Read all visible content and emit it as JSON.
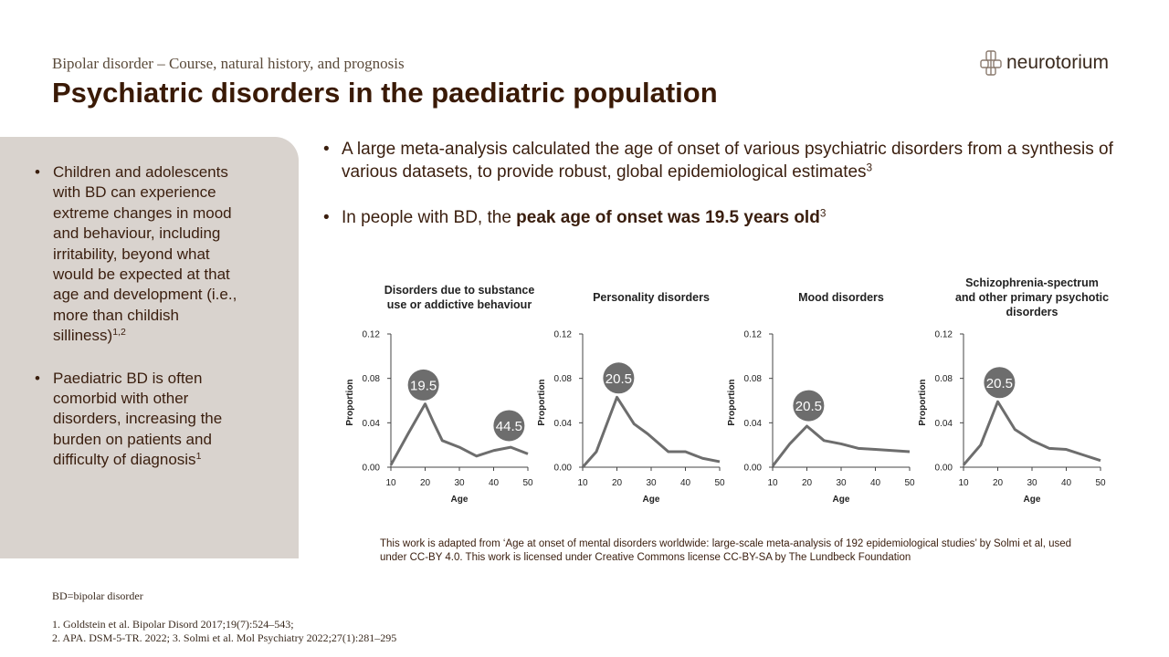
{
  "header": {
    "subtitle": "Bipolar disorder – Course, natural history, and prognosis",
    "title": "Psychiatric disorders in the paediatric population",
    "logo": "neurotorium"
  },
  "sidebar": {
    "bullets": [
      {
        "text": "Children and adolescents with BD can experience extreme changes in mood and behaviour, including irritability, beyond what would be expected at that age and development (i.e., more than childish silliness)",
        "sup": "1,2"
      },
      {
        "text": "Paediatric BD is often comorbid with other disorders, increasing the burden on patients and difficulty of diagnosis",
        "sup": "1"
      }
    ]
  },
  "main": {
    "bullets": [
      {
        "text": "A large meta-analysis calculated the age of onset of various psychiatric disorders from a synthesis of various datasets, to provide robust, global epidemiological estimates",
        "sup": "3"
      },
      {
        "text": "In people with BD, the ",
        "bold": "peak age of onset was 19.5 years old",
        "sup": "3"
      }
    ]
  },
  "chart_data": [
    {
      "type": "line",
      "title": "Disorders due to substance use or addictive behaviour",
      "x_label": "Age",
      "y_label": "Proportion",
      "x": [
        10,
        15,
        20,
        22.5,
        25,
        30,
        35,
        40,
        45,
        50
      ],
      "values": [
        0.002,
        0.03,
        0.057,
        0.04,
        0.024,
        0.018,
        0.01,
        0.015,
        0.018,
        0.012
      ],
      "color": "#6d6d6d",
      "xlim": [
        10,
        50
      ],
      "ylim": [
        0,
        0.12
      ],
      "xticks": [
        10,
        20,
        30,
        40,
        50
      ],
      "yticks": [
        {
          "value": 0,
          "label": "0.00"
        },
        0.04,
        0.08,
        0.12
      ],
      "peaks": [
        19.5,
        44.5
      ]
    },
    {
      "type": "line",
      "title": "Personality disorders",
      "x_label": "Age",
      "y_label": "Proportion",
      "x": [
        10,
        14,
        20,
        25,
        29,
        35,
        40,
        45,
        50
      ],
      "values": [
        0.0,
        0.014,
        0.063,
        0.039,
        0.03,
        0.014,
        0.014,
        0.008,
        0.005
      ],
      "color": "#6d6d6d",
      "xlim": [
        10,
        50
      ],
      "ylim": [
        0,
        0.12
      ],
      "xticks": [
        10,
        20,
        30,
        40,
        50
      ],
      "yticks": [
        {
          "value": 0,
          "label": "0.00"
        },
        0.04,
        0.08,
        0.12
      ],
      "peaks": [
        20.5
      ]
    },
    {
      "type": "line",
      "title": "Mood disorders",
      "x_label": "Age",
      "y_label": "Proportion",
      "x": [
        10,
        15,
        20,
        25,
        30,
        35,
        40,
        45,
        50
      ],
      "values": [
        0.001,
        0.021,
        0.037,
        0.024,
        0.021,
        0.017,
        0.016,
        0.015,
        0.014
      ],
      "color": "#6d6d6d",
      "xlim": [
        10,
        50
      ],
      "ylim": [
        0,
        0.12
      ],
      "xticks": [
        10,
        20,
        30,
        40,
        50
      ],
      "yticks": [
        {
          "value": 0,
          "label": "0.00"
        },
        0.04,
        0.08,
        0.12
      ],
      "peaks": [
        20.5
      ]
    },
    {
      "type": "line",
      "title": "Schizophrenia-spectrum and other primary psychotic disorders",
      "x_label": "Age",
      "y_label": "Proportion",
      "x": [
        10,
        15,
        20,
        25,
        30,
        35,
        40,
        45,
        50
      ],
      "values": [
        0.002,
        0.02,
        0.059,
        0.034,
        0.024,
        0.017,
        0.016,
        0.011,
        0.006
      ],
      "color": "#6d6d6d",
      "xlim": [
        10,
        50
      ],
      "ylim": [
        0,
        0.12
      ],
      "xticks": [
        10,
        20,
        30,
        40,
        50
      ],
      "yticks": [
        {
          "value": 0,
          "label": "0.00"
        },
        0.04,
        0.08,
        0.12
      ],
      "peaks": [
        20.5
      ]
    }
  ],
  "credit": "This work is adapted from ‘Age at onset of mental disorders worldwide: large-scale meta-analysis of 192 epidemiological studies’ by Solmi et al, used under CC-BY 4.0. This work is licensed under Creative Commons license CC-BY-SA by The Lundbeck Foundation",
  "footer": {
    "abbreviation": "BD=bipolar disorder",
    "references": [
      "1. Goldstein et al. Bipolar Disord 2017;19(7):524–543;",
      "2. APA. DSM-5-TR. 2022; 3. Solmi et al. Mol Psychiatry 2022;27(1):281–295"
    ]
  }
}
